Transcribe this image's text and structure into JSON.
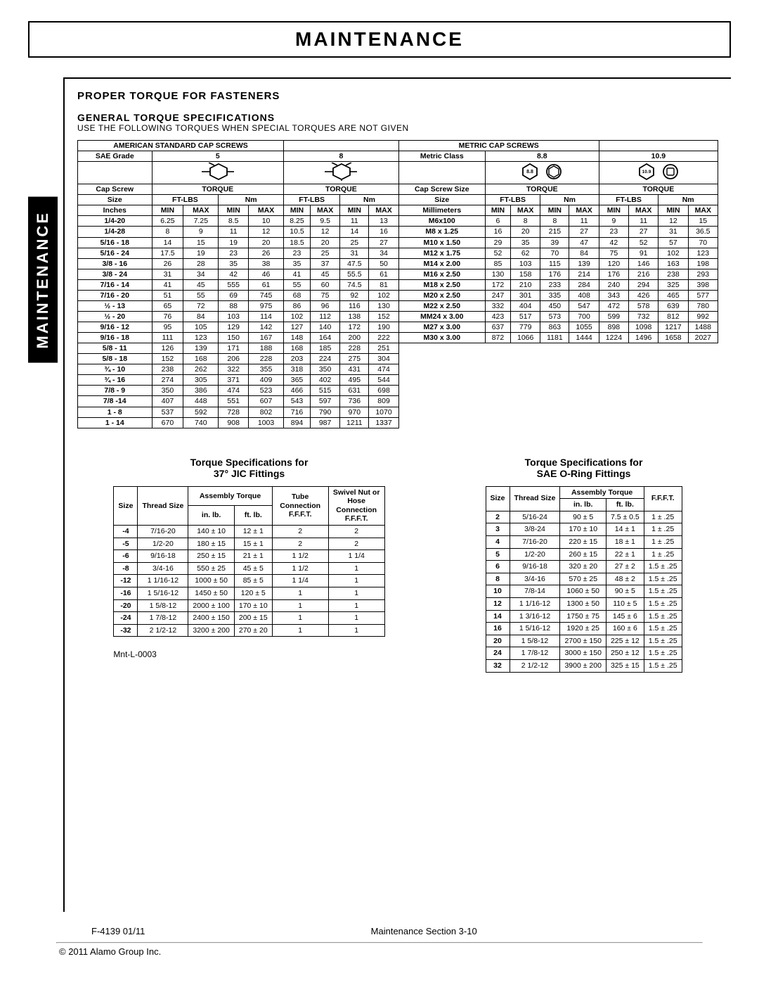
{
  "title": "MAINTENANCE",
  "sideTab": "MAINTENANCE",
  "section": {
    "h1": "PROPER TORQUE FOR FASTENERS",
    "h2": "GENERAL TORQUE SPECIFICATIONS",
    "sub": "USE THE FOLLOWING TORQUES WHEN SPECIAL TORQUES ARE NOT GIVEN"
  },
  "mainTable": {
    "hdrAmerican": "AMERICAN STANDARD CAP SCREWS",
    "hdrMetric": "METRIC CAP SCREWS",
    "saeGrade": "SAE Grade",
    "metricClass": "Metric Class",
    "capScrew": "Cap Screw",
    "capScrewSize": "Cap Screw Size",
    "torque": "TORQUE",
    "size": "Size",
    "ftlbs": "FT-LBS",
    "nm": "Nm",
    "inches": "Inches",
    "mm": "Millimeters",
    "min": "MIN",
    "max": "MAX",
    "grade5": "5",
    "grade8": "8",
    "class88": "8.8",
    "class109": "10.9",
    "rowsUS": [
      [
        "1/4-20",
        "6.25",
        "7.25",
        "8.5",
        "10",
        "8.25",
        "9.5",
        "11",
        "13"
      ],
      [
        "1/4-28",
        "8",
        "9",
        "11",
        "12",
        "10.5",
        "12",
        "14",
        "16"
      ],
      [
        "5/16 - 18",
        "14",
        "15",
        "19",
        "20",
        "18.5",
        "20",
        "25",
        "27"
      ],
      [
        "5/16 - 24",
        "17.5",
        "19",
        "23",
        "26",
        "23",
        "25",
        "31",
        "34"
      ],
      [
        "3/8 - 16",
        "26",
        "28",
        "35",
        "38",
        "35",
        "37",
        "47.5",
        "50"
      ],
      [
        "3/8 - 24",
        "31",
        "34",
        "42",
        "46",
        "41",
        "45",
        "55.5",
        "61"
      ],
      [
        "7/16 - 14",
        "41",
        "45",
        "555",
        "61",
        "55",
        "60",
        "74.5",
        "81"
      ],
      [
        "7/16 - 20",
        "51",
        "55",
        "69",
        "745",
        "68",
        "75",
        "92",
        "102"
      ],
      [
        "½ - 13",
        "65",
        "72",
        "88",
        "975",
        "86",
        "96",
        "116",
        "130"
      ],
      [
        "½ - 20",
        "76",
        "84",
        "103",
        "114",
        "102",
        "112",
        "138",
        "152"
      ],
      [
        "9/16 - 12",
        "95",
        "105",
        "129",
        "142",
        "127",
        "140",
        "172",
        "190"
      ],
      [
        "9/16 - 18",
        "111",
        "123",
        "150",
        "167",
        "148",
        "164",
        "200",
        "222"
      ],
      [
        "5/8 - 11",
        "126",
        "139",
        "171",
        "188",
        "168",
        "185",
        "228",
        "251"
      ],
      [
        "5/8 - 18",
        "152",
        "168",
        "206",
        "228",
        "203",
        "224",
        "275",
        "304"
      ],
      [
        "¾ - 10",
        "238",
        "262",
        "322",
        "355",
        "318",
        "350",
        "431",
        "474"
      ],
      [
        "¾ - 16",
        "274",
        "305",
        "371",
        "409",
        "365",
        "402",
        "495",
        "544"
      ],
      [
        "7/8 - 9",
        "350",
        "386",
        "474",
        "523",
        "466",
        "515",
        "631",
        "698"
      ],
      [
        "7/8 -14",
        "407",
        "448",
        "551",
        "607",
        "543",
        "597",
        "736",
        "809"
      ],
      [
        "1 - 8",
        "537",
        "592",
        "728",
        "802",
        "716",
        "790",
        "970",
        "1070"
      ],
      [
        "1 - 14",
        "670",
        "740",
        "908",
        "1003",
        "894",
        "987",
        "1211",
        "1337"
      ]
    ],
    "rowsMetric": [
      [
        "M6x100",
        "6",
        "8",
        "8",
        "11",
        "9",
        "11",
        "12",
        "15"
      ],
      [
        "M8 x 1.25",
        "16",
        "20",
        "215",
        "27",
        "23",
        "27",
        "31",
        "36.5"
      ],
      [
        "M10 x 1.50",
        "29",
        "35",
        "39",
        "47",
        "42",
        "52",
        "57",
        "70"
      ],
      [
        "M12 x 1.75",
        "52",
        "62",
        "70",
        "84",
        "75",
        "91",
        "102",
        "123"
      ],
      [
        "M14 x 2.00",
        "85",
        "103",
        "115",
        "139",
        "120",
        "146",
        "163",
        "198"
      ],
      [
        "M16 x 2.50",
        "130",
        "158",
        "176",
        "214",
        "176",
        "216",
        "238",
        "293"
      ],
      [
        "M18 x 2.50",
        "172",
        "210",
        "233",
        "284",
        "240",
        "294",
        "325",
        "398"
      ],
      [
        "M20 x 2.50",
        "247",
        "301",
        "335",
        "408",
        "343",
        "426",
        "465",
        "577"
      ],
      [
        "M22 x 2.50",
        "332",
        "404",
        "450",
        "547",
        "472",
        "578",
        "639",
        "780"
      ],
      [
        "MM24 x 3.00",
        "423",
        "517",
        "573",
        "700",
        "599",
        "732",
        "812",
        "992"
      ],
      [
        "M27 x 3.00",
        "637",
        "779",
        "863",
        "1055",
        "898",
        "1098",
        "1217",
        "1488"
      ],
      [
        "M30 x 3.00",
        "872",
        "1066",
        "1181",
        "1444",
        "1224",
        "1496",
        "1658",
        "2027"
      ]
    ]
  },
  "jic": {
    "title1": "Torque Specifications for",
    "title2": "37° JIC Fittings",
    "assembly": "Assembly Torque",
    "cols": [
      "Size",
      "Thread Size",
      "in. lb.",
      "ft. lb.",
      "Tube Connection F.F.F.T.",
      "Swivel Nut or Hose Connection F.F.F.T."
    ],
    "rows": [
      [
        "-4",
        "7/16-20",
        "140 ± 10",
        "12 ± 1",
        "2",
        "2"
      ],
      [
        "-5",
        "1/2-20",
        "180 ± 15",
        "15 ± 1",
        "2",
        "2"
      ],
      [
        "-6",
        "9/16-18",
        "250 ± 15",
        "21 ± 1",
        "1 1/2",
        "1 1/4"
      ],
      [
        "-8",
        "3/4-16",
        "550 ± 25",
        "45 ± 5",
        "1 1/2",
        "1"
      ],
      [
        "-12",
        "1 1/16-12",
        "1000 ± 50",
        "85 ± 5",
        "1 1/4",
        "1"
      ],
      [
        "-16",
        "1 5/16-12",
        "1450 ± 50",
        "120 ± 5",
        "1",
        "1"
      ],
      [
        "-20",
        "1 5/8-12",
        "2000 ± 100",
        "170 ± 10",
        "1",
        "1"
      ],
      [
        "-24",
        "1 7/8-12",
        "2400 ± 150",
        "200 ± 15",
        "1",
        "1"
      ],
      [
        "-32",
        "2 1/2-12",
        "3200 ± 200",
        "270 ± 20",
        "1",
        "1"
      ]
    ]
  },
  "oring": {
    "title1": "Torque Specifications for",
    "title2": "SAE O-Ring Fittings",
    "assembly": "Assembly Torque",
    "cols": [
      "Size",
      "Thread Size",
      "in. lb.",
      "ft. lb.",
      "F.F.F.T."
    ],
    "rows": [
      [
        "2",
        "5/16-24",
        "90 ± 5",
        "7.5 ± 0.5",
        "1 ± .25"
      ],
      [
        "3",
        "3/8-24",
        "170 ± 10",
        "14 ± 1",
        "1 ± .25"
      ],
      [
        "4",
        "7/16-20",
        "220 ± 15",
        "18 ± 1",
        "1 ± .25"
      ],
      [
        "5",
        "1/2-20",
        "260 ± 15",
        "22 ± 1",
        "1 ± .25"
      ],
      [
        "6",
        "9/16-18",
        "320 ± 20",
        "27 ± 2",
        "1.5 ± .25"
      ],
      [
        "8",
        "3/4-16",
        "570 ± 25",
        "48 ± 2",
        "1.5 ± .25"
      ],
      [
        "10",
        "7/8-14",
        "1060 ± 50",
        "90 ± 5",
        "1.5 ± .25"
      ],
      [
        "12",
        "1 1/16-12",
        "1300 ± 50",
        "110 ± 5",
        "1.5 ± .25"
      ],
      [
        "14",
        "1 3/16-12",
        "1750 ± 75",
        "145 ± 6",
        "1.5 ± .25"
      ],
      [
        "16",
        "1 5/16-12",
        "1920 ± 25",
        "160 ± 6",
        "1.5 ± .25"
      ],
      [
        "20",
        "1 5/8-12",
        "2700 ± 150",
        "225 ± 12",
        "1.5 ± .25"
      ],
      [
        "24",
        "1 7/8-12",
        "3000 ± 150",
        "250 ± 12",
        "1.5 ± .25"
      ],
      [
        "32",
        "2 1/2-12",
        "3900 ± 200",
        "325 ± 15",
        "1.5 ± .25"
      ]
    ]
  },
  "docId": "Mnt-L-0003",
  "footer": {
    "left": "F-4139  01/11",
    "center": "Maintenance Section 3-10"
  },
  "copyright": "© 2011 Alamo Group Inc."
}
